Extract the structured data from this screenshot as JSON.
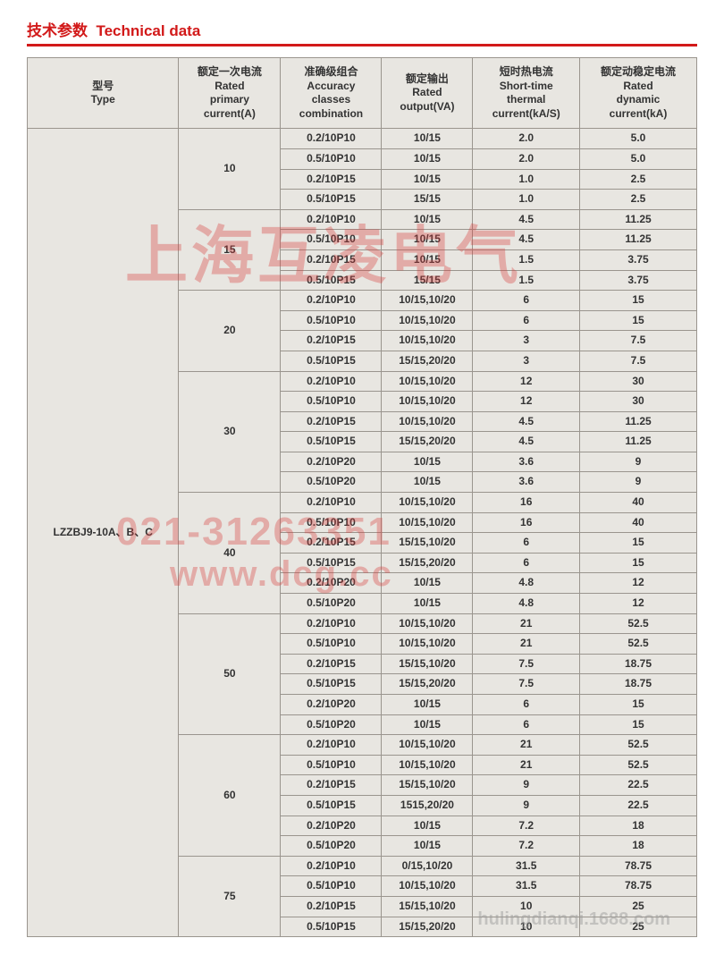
{
  "title_cn": "技术参数",
  "title_en": "Technical data",
  "cols": [
    {
      "cn": "型号",
      "en": "Type"
    },
    {
      "cn": "额定一次电流",
      "en": "Rated primary current(A)"
    },
    {
      "cn": "准确级组合",
      "en": "Accuracy classes combination"
    },
    {
      "cn": "额定输出",
      "en": "Rated output(VA)"
    },
    {
      "cn": "短时热电流",
      "en": "Short-time thermal current(kA/S)"
    },
    {
      "cn": "额定动稳定电流",
      "en": "Rated dynamic current(kA)"
    }
  ],
  "type": "LZZBJ9-10A、B、C",
  "groups": [
    {
      "pri": "10",
      "rows": [
        [
          "0.2/10P10",
          "10/15",
          "2.0",
          "5.0"
        ],
        [
          "0.5/10P10",
          "10/15",
          "2.0",
          "5.0"
        ],
        [
          "0.2/10P15",
          "10/15",
          "1.0",
          "2.5"
        ],
        [
          "0.5/10P15",
          "15/15",
          "1.0",
          "2.5"
        ]
      ]
    },
    {
      "pri": "15",
      "rows": [
        [
          "0.2/10P10",
          "10/15",
          "4.5",
          "11.25"
        ],
        [
          "0.5/10P10",
          "10/15",
          "4.5",
          "11.25"
        ],
        [
          "0.2/10P15",
          "10/15",
          "1.5",
          "3.75"
        ],
        [
          "0.5/10P15",
          "15/15",
          "1.5",
          "3.75"
        ]
      ]
    },
    {
      "pri": "20",
      "rows": [
        [
          "0.2/10P10",
          "10/15,10/20",
          "6",
          "15"
        ],
        [
          "0.5/10P10",
          "10/15,10/20",
          "6",
          "15"
        ],
        [
          "0.2/10P15",
          "10/15,10/20",
          "3",
          "7.5"
        ],
        [
          "0.5/10P15",
          "15/15,20/20",
          "3",
          "7.5"
        ]
      ]
    },
    {
      "pri": "30",
      "rows": [
        [
          "0.2/10P10",
          "10/15,10/20",
          "12",
          "30"
        ],
        [
          "0.5/10P10",
          "10/15,10/20",
          "12",
          "30"
        ],
        [
          "0.2/10P15",
          "10/15,10/20",
          "4.5",
          "11.25"
        ],
        [
          "0.5/10P15",
          "15/15,20/20",
          "4.5",
          "11.25"
        ],
        [
          "0.2/10P20",
          "10/15",
          "3.6",
          "9"
        ],
        [
          "0.5/10P20",
          "10/15",
          "3.6",
          "9"
        ]
      ]
    },
    {
      "pri": "40",
      "rows": [
        [
          "0.2/10P10",
          "10/15,10/20",
          "16",
          "40"
        ],
        [
          "0.5/10P10",
          "10/15,10/20",
          "16",
          "40"
        ],
        [
          "0.2/10P15",
          "15/15,10/20",
          "6",
          "15"
        ],
        [
          "0.5/10P15",
          "15/15,20/20",
          "6",
          "15"
        ],
        [
          "0.2/10P20",
          "10/15",
          "4.8",
          "12"
        ],
        [
          "0.5/10P20",
          "10/15",
          "4.8",
          "12"
        ]
      ]
    },
    {
      "pri": "50",
      "rows": [
        [
          "0.2/10P10",
          "10/15,10/20",
          "21",
          "52.5"
        ],
        [
          "0.5/10P10",
          "10/15,10/20",
          "21",
          "52.5"
        ],
        [
          "0.2/10P15",
          "15/15,10/20",
          "7.5",
          "18.75"
        ],
        [
          "0.5/10P15",
          "15/15,20/20",
          "7.5",
          "18.75"
        ],
        [
          "0.2/10P20",
          "10/15",
          "6",
          "15"
        ],
        [
          "0.5/10P20",
          "10/15",
          "6",
          "15"
        ]
      ]
    },
    {
      "pri": "60",
      "rows": [
        [
          "0.2/10P10",
          "10/15,10/20",
          "21",
          "52.5"
        ],
        [
          "0.5/10P10",
          "10/15,10/20",
          "21",
          "52.5"
        ],
        [
          "0.2/10P15",
          "15/15,10/20",
          "9",
          "22.5"
        ],
        [
          "0.5/10P15",
          "1515,20/20",
          "9",
          "22.5"
        ],
        [
          "0.2/10P20",
          "10/15",
          "7.2",
          "18"
        ],
        [
          "0.5/10P20",
          "10/15",
          "7.2",
          "18"
        ]
      ]
    },
    {
      "pri": "75",
      "rows": [
        [
          "0.2/10P10",
          "0/15,10/20",
          "31.5",
          "78.75"
        ],
        [
          "0.5/10P10",
          "10/15,10/20",
          "31.5",
          "78.75"
        ],
        [
          "0.2/10P15",
          "15/15,10/20",
          "10",
          "25"
        ],
        [
          "0.5/10P15",
          "15/15,20/20",
          "10",
          "25"
        ]
      ]
    }
  ],
  "wm": {
    "a": "上海互凌电气",
    "b": "021-31263351",
    "c": "www.dcg.cc",
    "d": "hulingdianqi.1688.com"
  },
  "colors": {
    "accent": "#d21919",
    "border": "#9a958e",
    "bg": "#e8e6e1",
    "wm": "rgba(215,60,60,0.35)"
  }
}
